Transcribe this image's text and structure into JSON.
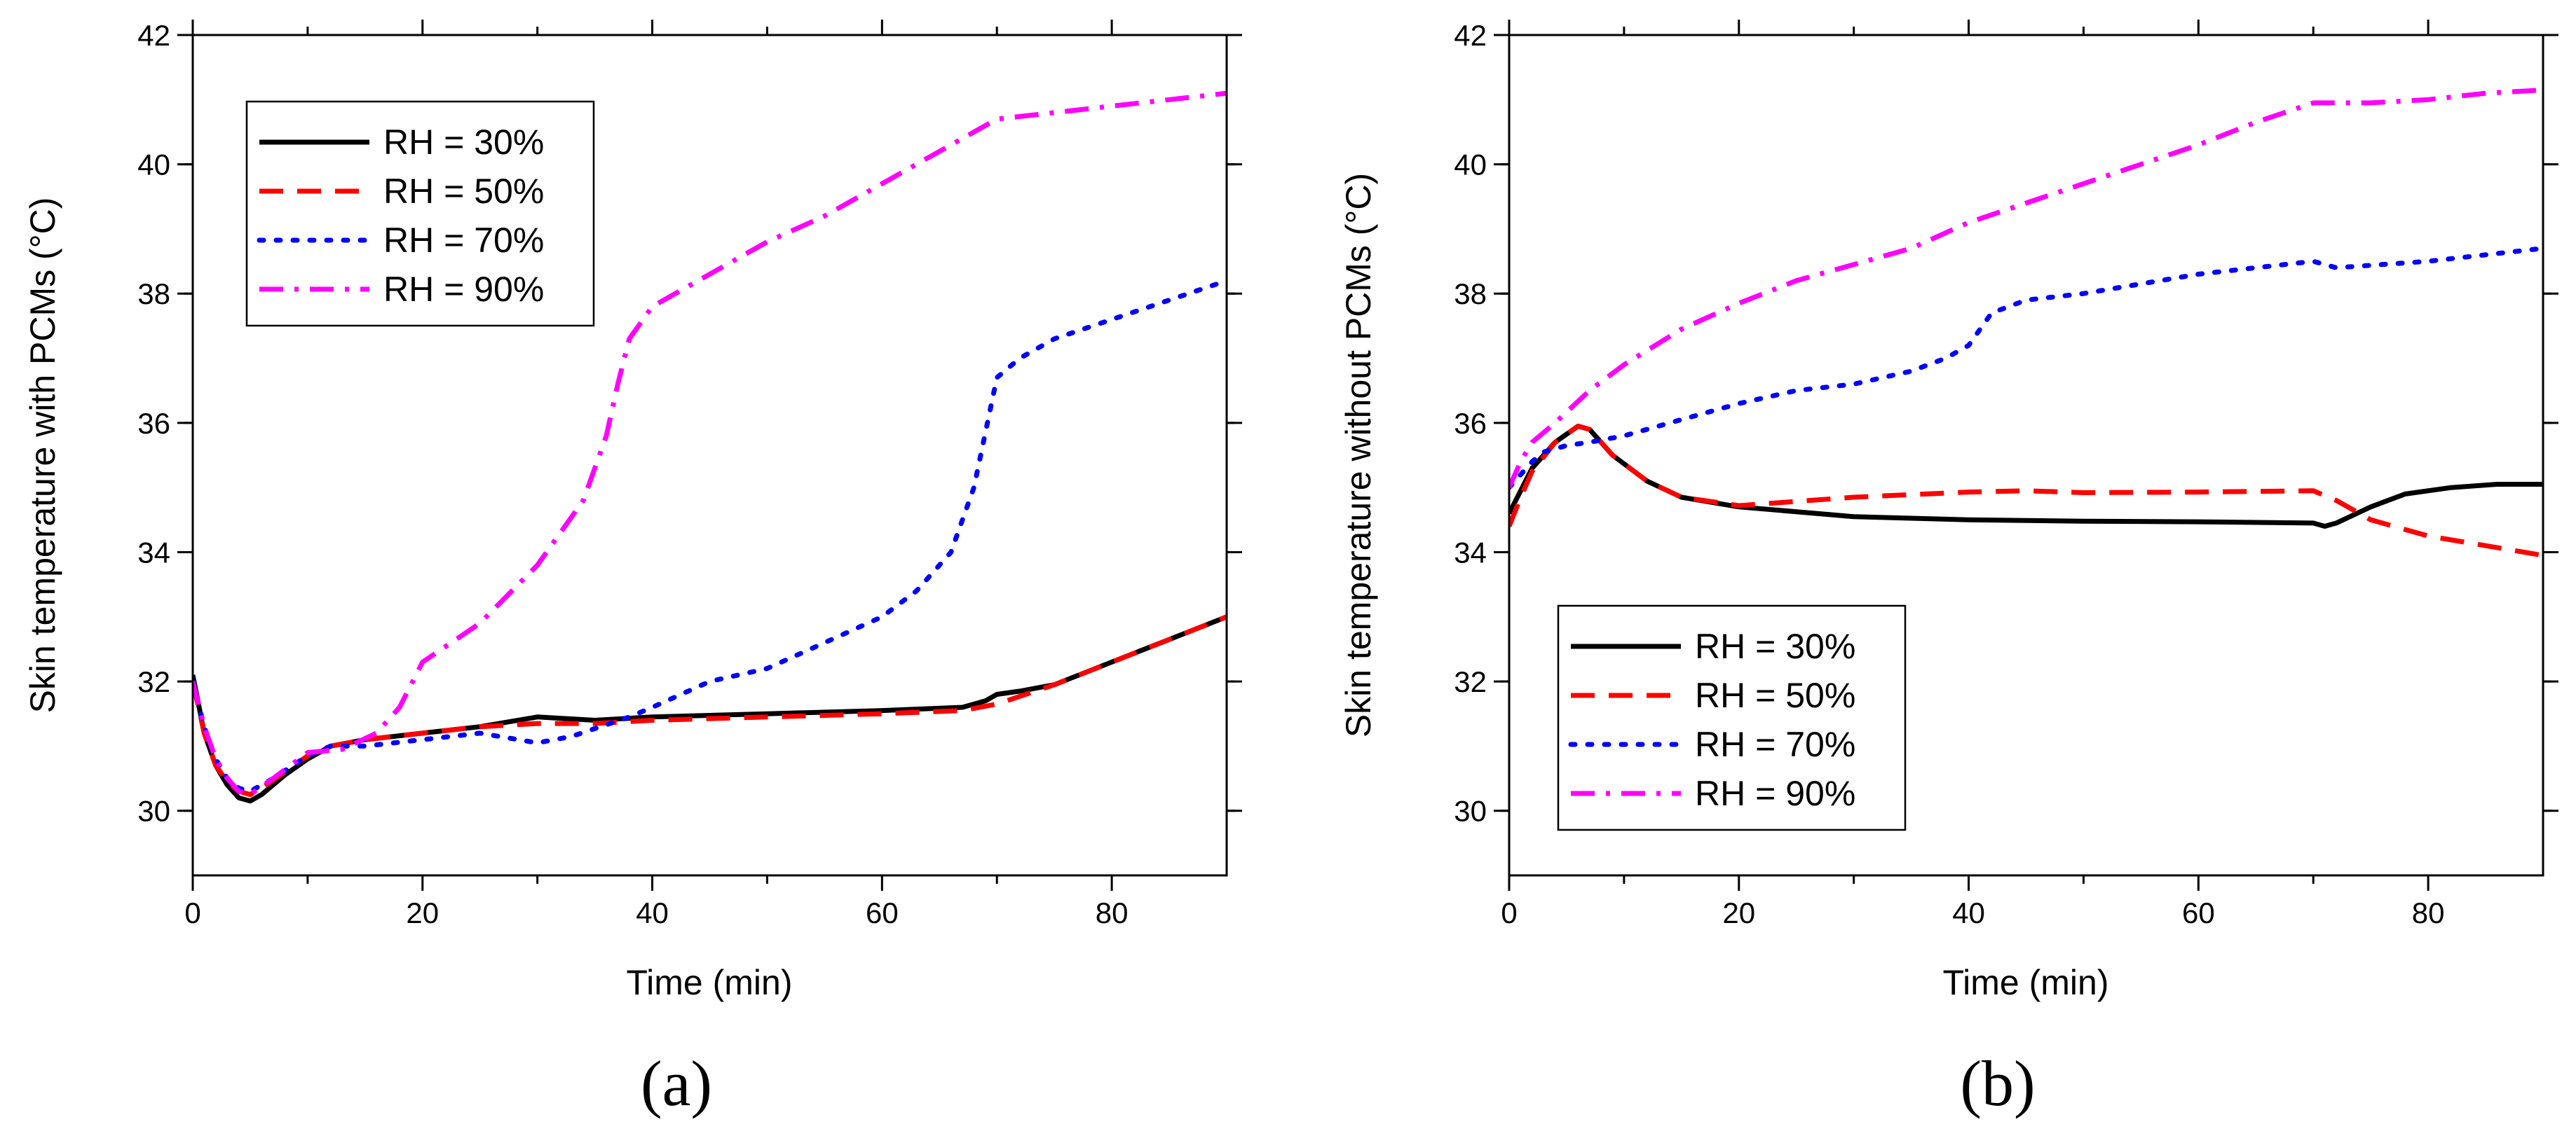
{
  "chart_data": [
    {
      "type": "line",
      "panel_label": "(a)",
      "xlabel": "Time (min)",
      "ylabel": "Skin temperature with PCMs (°C)",
      "xlim": [
        0,
        90
      ],
      "ylim": [
        29,
        42
      ],
      "xticks": [
        0,
        20,
        40,
        60,
        80
      ],
      "yticks": [
        30,
        32,
        34,
        36,
        38,
        40,
        42
      ],
      "legend_position": "top-left",
      "series": [
        {
          "name": "RH = 30%",
          "color": "#000000",
          "style": "solid",
          "x": [
            0,
            1,
            2,
            3,
            4,
            5,
            6,
            8,
            10,
            12,
            15,
            20,
            25,
            30,
            35,
            40,
            50,
            60,
            67,
            69,
            70,
            72,
            75,
            80,
            85,
            90
          ],
          "y": [
            32.1,
            31.2,
            30.7,
            30.4,
            30.2,
            30.15,
            30.25,
            30.55,
            30.8,
            31.0,
            31.1,
            31.2,
            31.3,
            31.45,
            31.4,
            31.45,
            31.5,
            31.55,
            31.6,
            31.7,
            31.8,
            31.85,
            31.95,
            32.3,
            32.65,
            33.0
          ]
        },
        {
          "name": "RH = 50%",
          "color": "#ff0000",
          "style": "dashed",
          "x": [
            0,
            1,
            2,
            3,
            4,
            5,
            6,
            8,
            10,
            12,
            15,
            20,
            25,
            30,
            35,
            40,
            50,
            60,
            67,
            70,
            75,
            80,
            85,
            90
          ],
          "y": [
            32.0,
            31.2,
            30.7,
            30.45,
            30.3,
            30.25,
            30.35,
            30.6,
            30.85,
            31.0,
            31.1,
            31.2,
            31.3,
            31.35,
            31.35,
            31.4,
            31.45,
            31.5,
            31.55,
            31.65,
            31.95,
            32.3,
            32.65,
            33.0
          ]
        },
        {
          "name": "RH = 70%",
          "color": "#0000ff",
          "style": "dotted",
          "x": [
            0,
            1,
            2,
            3,
            4,
            5,
            7,
            10,
            12,
            15,
            20,
            25,
            30,
            33,
            38,
            40,
            45,
            50,
            55,
            60,
            63,
            66,
            68,
            70,
            72,
            75,
            80,
            85,
            90
          ],
          "y": [
            32.0,
            31.3,
            30.8,
            30.5,
            30.35,
            30.3,
            30.5,
            30.85,
            31.0,
            31.0,
            31.1,
            31.2,
            31.05,
            31.15,
            31.45,
            31.6,
            32.0,
            32.2,
            32.6,
            33.0,
            33.4,
            34.0,
            35.0,
            36.7,
            37.0,
            37.3,
            37.6,
            37.9,
            38.2
          ]
        },
        {
          "name": "RH = 90%",
          "color": "#ff00ff",
          "style": "dash-dot",
          "x": [
            0,
            1,
            2,
            3,
            4,
            5,
            7,
            10,
            13,
            16,
            18,
            20,
            25,
            30,
            34,
            36,
            37,
            38,
            40,
            45,
            50,
            55,
            60,
            65,
            70,
            75,
            80,
            85,
            90
          ],
          "y": [
            32.0,
            31.3,
            30.8,
            30.5,
            30.3,
            30.25,
            30.5,
            30.9,
            30.95,
            31.2,
            31.6,
            32.3,
            32.9,
            33.8,
            34.8,
            35.8,
            36.6,
            37.3,
            37.8,
            38.3,
            38.8,
            39.2,
            39.7,
            40.2,
            40.7,
            40.8,
            40.9,
            41.0,
            41.1
          ]
        }
      ]
    },
    {
      "type": "line",
      "panel_label": "(b)",
      "xlabel": "Time (min)",
      "ylabel": "Skin temperature without PCMs (°C)",
      "xlim": [
        0,
        90
      ],
      "ylim": [
        29,
        42
      ],
      "xticks": [
        0,
        20,
        40,
        60,
        80
      ],
      "yticks": [
        30,
        32,
        34,
        36,
        38,
        40,
        42
      ],
      "legend_position": "bottom-left",
      "series": [
        {
          "name": "RH = 30%",
          "color": "#000000",
          "style": "solid",
          "x": [
            0,
            1,
            2,
            4,
            6,
            7,
            9,
            12,
            15,
            20,
            30,
            40,
            50,
            60,
            70,
            71,
            72,
            75,
            78,
            82,
            86,
            90
          ],
          "y": [
            34.6,
            34.95,
            35.3,
            35.7,
            35.95,
            35.9,
            35.5,
            35.1,
            34.85,
            34.7,
            34.55,
            34.5,
            34.48,
            34.47,
            34.45,
            34.4,
            34.45,
            34.7,
            34.9,
            35.0,
            35.05,
            35.05
          ]
        },
        {
          "name": "RH = 50%",
          "color": "#ff0000",
          "style": "dashed",
          "x": [
            0,
            1,
            2,
            4,
            6,
            7,
            9,
            12,
            15,
            20,
            30,
            40,
            45,
            50,
            60,
            70,
            72,
            75,
            80,
            85,
            90
          ],
          "y": [
            34.4,
            34.85,
            35.25,
            35.7,
            35.95,
            35.9,
            35.5,
            35.1,
            34.85,
            34.72,
            34.85,
            34.93,
            34.95,
            34.92,
            34.93,
            34.95,
            34.8,
            34.5,
            34.25,
            34.1,
            33.95
          ]
        },
        {
          "name": "RH = 70%",
          "color": "#0000ff",
          "style": "dotted",
          "x": [
            0,
            1,
            2,
            3,
            5,
            7,
            10,
            15,
            20,
            25,
            30,
            35,
            38,
            40,
            42,
            45,
            50,
            60,
            70,
            72,
            80,
            90
          ],
          "y": [
            35.0,
            35.2,
            35.4,
            35.55,
            35.65,
            35.7,
            35.8,
            36.05,
            36.3,
            36.5,
            36.6,
            36.8,
            37.0,
            37.2,
            37.7,
            37.9,
            38.0,
            38.3,
            38.5,
            38.4,
            38.5,
            38.7
          ]
        },
        {
          "name": "RH = 90%",
          "color": "#ff00ff",
          "style": "dash-dot",
          "x": [
            0,
            1,
            2,
            4,
            7,
            10,
            15,
            20,
            25,
            30,
            35,
            40,
            45,
            50,
            55,
            60,
            65,
            70,
            72,
            75,
            80,
            85,
            90
          ],
          "y": [
            35.0,
            35.4,
            35.7,
            36.0,
            36.5,
            36.9,
            37.45,
            37.85,
            38.2,
            38.45,
            38.7,
            39.1,
            39.4,
            39.7,
            40.0,
            40.3,
            40.65,
            40.95,
            40.95,
            40.95,
            41.0,
            41.1,
            41.15
          ]
        }
      ]
    }
  ]
}
